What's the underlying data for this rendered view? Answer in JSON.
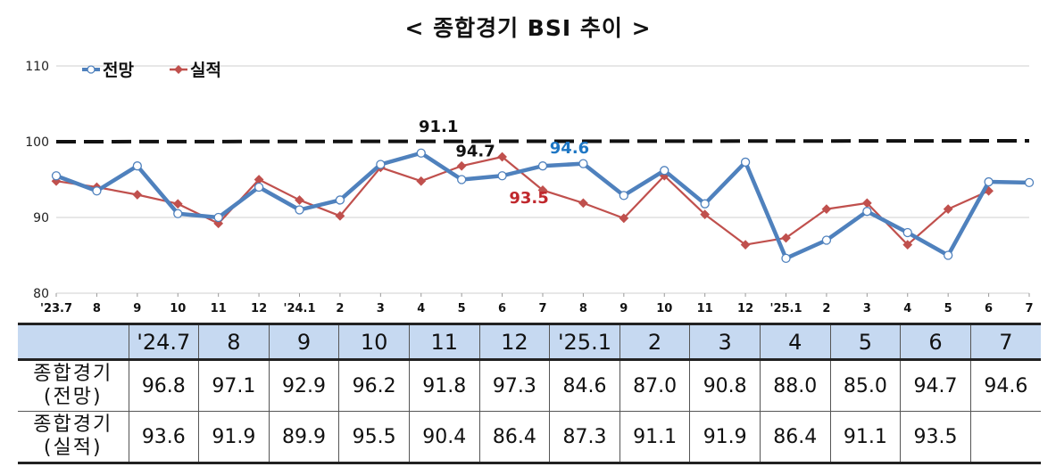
{
  "title": "< 종합경기 BSI 추이 >",
  "chart_data": {
    "type": "line",
    "x": [
      "'23.7",
      "8",
      "9",
      "10",
      "11",
      "12",
      "'24.1",
      "2",
      "3",
      "4",
      "5",
      "6",
      "7",
      "8",
      "9",
      "10",
      "11",
      "12",
      "'25.1",
      "2",
      "3",
      "4",
      "5",
      "6",
      "7"
    ],
    "ylim": [
      80,
      110
    ],
    "yticks": [
      80,
      90,
      100,
      110
    ],
    "reference_line": 100,
    "legend_position": "top-left",
    "series": [
      {
        "name": "전망",
        "color": "#4f81bd",
        "values": [
          95.5,
          93.5,
          96.8,
          90.5,
          90.0,
          94.0,
          91.0,
          92.3,
          97.0,
          98.5,
          95.0,
          95.5,
          96.8,
          97.1,
          92.9,
          96.2,
          91.8,
          97.3,
          84.6,
          87.0,
          90.8,
          88.0,
          85.0,
          94.7,
          94.6
        ]
      },
      {
        "name": "실적",
        "color": "#c0504d",
        "values": [
          94.8,
          94.0,
          93.0,
          91.8,
          89.2,
          95.0,
          92.3,
          90.2,
          96.6,
          94.8,
          96.8,
          98.0,
          93.6,
          91.9,
          89.9,
          95.5,
          90.4,
          86.4,
          87.3,
          91.1,
          91.9,
          86.4,
          91.1,
          93.5,
          null
        ]
      }
    ],
    "annotations": [
      {
        "text": "94.7",
        "x": "6",
        "color": "#111111"
      },
      {
        "text": "94.6",
        "x": "7",
        "color": "#1f77c4"
      },
      {
        "text": "91.1",
        "x": "5",
        "color": "#111111"
      },
      {
        "text": "93.5",
        "x": "6",
        "color": "#c0282d"
      }
    ]
  },
  "table": {
    "columns": [
      "'24.7",
      "8",
      "9",
      "10",
      "11",
      "12",
      "'25.1",
      "2",
      "3",
      "4",
      "5",
      "6",
      "7"
    ],
    "rows": [
      {
        "label1": "종합경기",
        "label2": "(전망)",
        "values": [
          "96.8",
          "97.1",
          "92.9",
          "96.2",
          "91.8",
          "97.3",
          "84.6",
          "87.0",
          "90.8",
          "88.0",
          "85.0",
          "94.7",
          "94.6"
        ]
      },
      {
        "label1": "종합경기",
        "label2": "(실적)",
        "values": [
          "93.6",
          "91.9",
          "89.9",
          "95.5",
          "90.4",
          "86.4",
          "87.3",
          "91.1",
          "91.9",
          "86.4",
          "91.1",
          "93.5",
          ""
        ]
      }
    ]
  }
}
